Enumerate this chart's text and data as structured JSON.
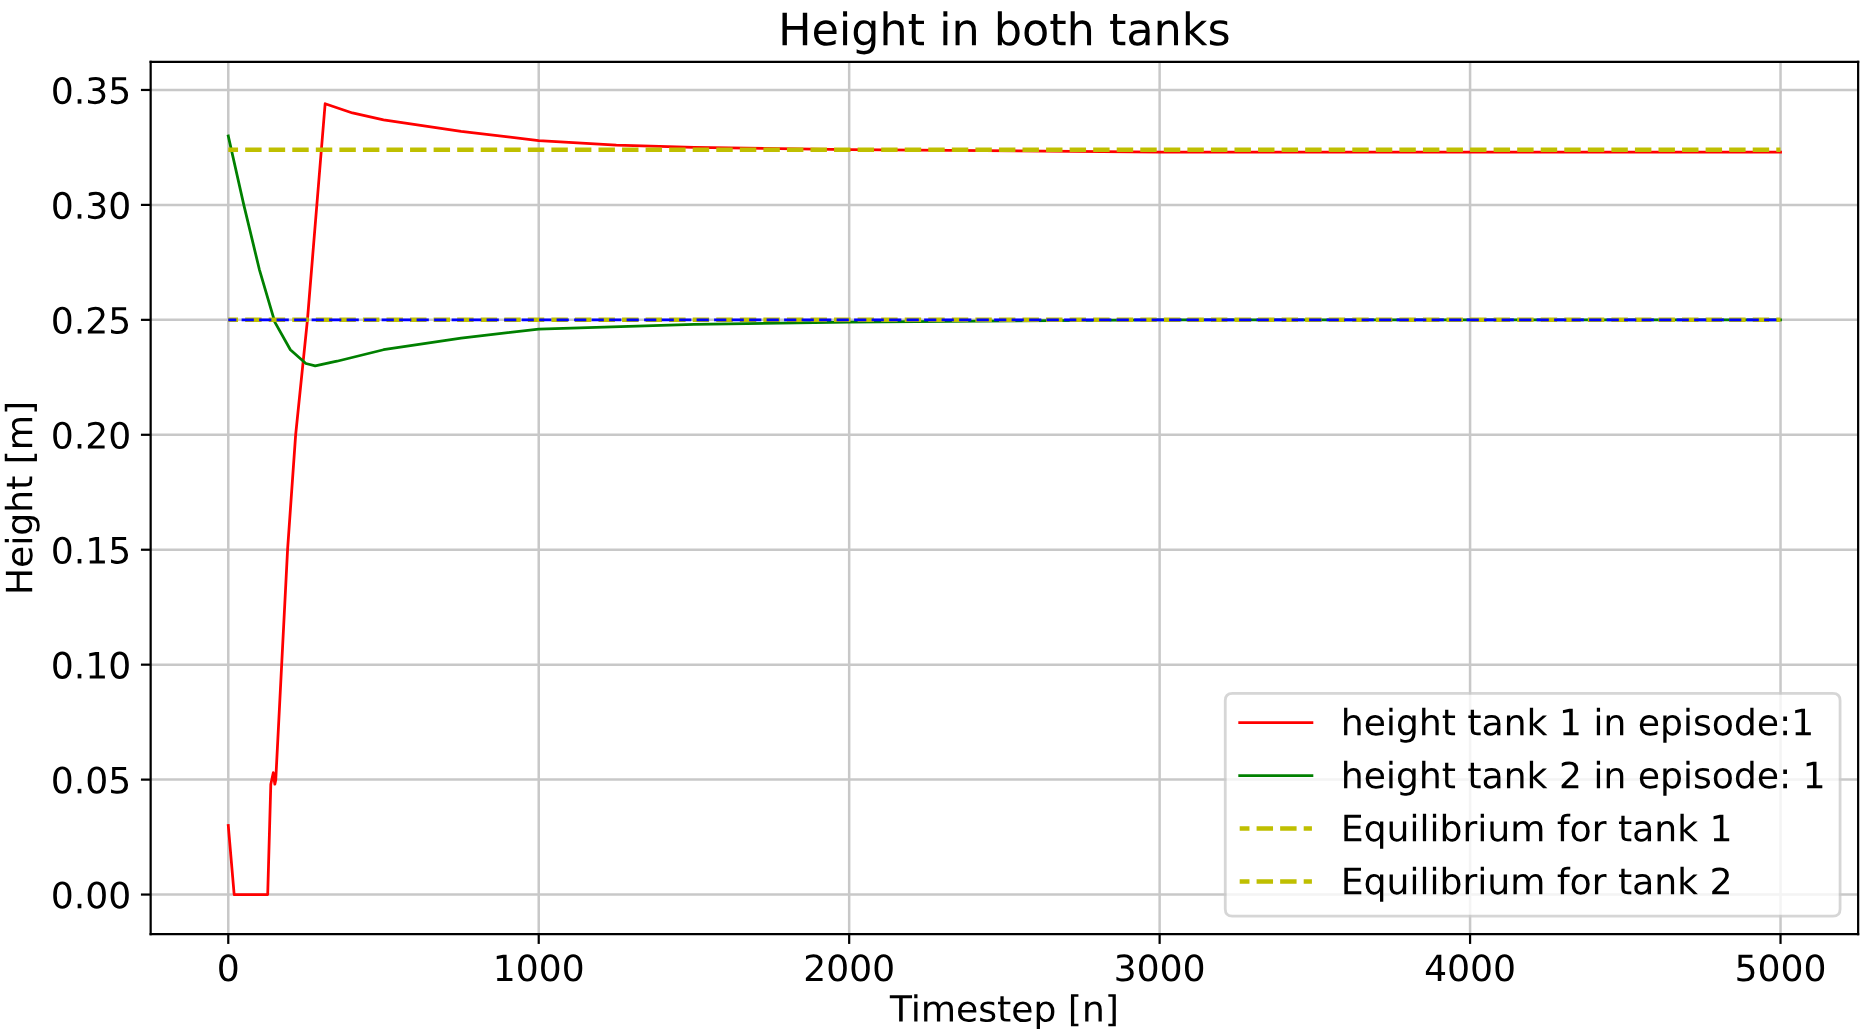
{
  "chart_data": {
    "type": "line",
    "title": "Height in both tanks",
    "xlabel": "Timestep [n]",
    "ylabel": "Height [m]",
    "series": [
      {
        "name": "height tank 1 in episode:1",
        "color": "#ff0000",
        "x": [
          0,
          19,
          127,
          137,
          145,
          150,
          153,
          191,
          217,
          255,
          312,
          400,
          500,
          750,
          1000,
          1250,
          1500,
          2000,
          3000,
          5000
        ],
        "values": [
          0.03,
          0,
          0,
          0.048,
          0.053,
          0.048,
          0.05,
          0.15,
          0.2,
          0.25,
          0.344,
          0.34,
          0.337,
          0.332,
          0.328,
          0.326,
          0.325,
          0.324,
          0.323,
          0.323
        ]
      },
      {
        "name": "height tank 2 in episode: 1",
        "color": "#008000",
        "x": [
          0,
          50,
          100,
          150,
          200,
          250,
          280,
          350,
          500,
          750,
          1000,
          1500,
          2000,
          3000,
          5000
        ],
        "values": [
          0.33,
          0.3,
          0.272,
          0.249,
          0.237,
          0.231,
          0.23,
          0.232,
          0.237,
          0.242,
          0.246,
          0.248,
          0.249,
          0.25,
          0.25
        ]
      },
      {
        "name": "Equilibrium for tank 1",
        "color": "#bfbf00",
        "line_style": "dashed",
        "x": [
          0,
          5000
        ],
        "values": [
          0.324,
          0.324
        ]
      },
      {
        "color": "#0000ff",
        "line_style": "dashed",
        "x": [
          0,
          5000
        ],
        "values": [
          0.25,
          0.25
        ]
      },
      {
        "name": "Equilibrium for tank 2",
        "color": "#bfbf00",
        "line_style": "dashed",
        "x": [
          0,
          5000
        ],
        "values": [
          0.25,
          0.25
        ]
      }
    ],
    "xlim": [
      -250,
      5250
    ],
    "xticks": [
      0,
      1000,
      2000,
      3000,
      4000,
      5000
    ],
    "ylim": [
      -0.01725,
      0.36225
    ],
    "yticks": [
      {
        "value": 0,
        "label": "0.00"
      },
      {
        "value": 0.05,
        "label": "0.05"
      },
      {
        "value": 0.1,
        "label": "0.10"
      },
      {
        "value": 0.15,
        "label": "0.15"
      },
      {
        "value": 0.2,
        "label": "0.20"
      },
      {
        "value": 0.25,
        "label": "0.25"
      },
      {
        "value": 0.3,
        "label": "0.30"
      },
      {
        "value": 0.35,
        "label": "0.35"
      }
    ],
    "grid": true,
    "legend": "bottom right"
  }
}
